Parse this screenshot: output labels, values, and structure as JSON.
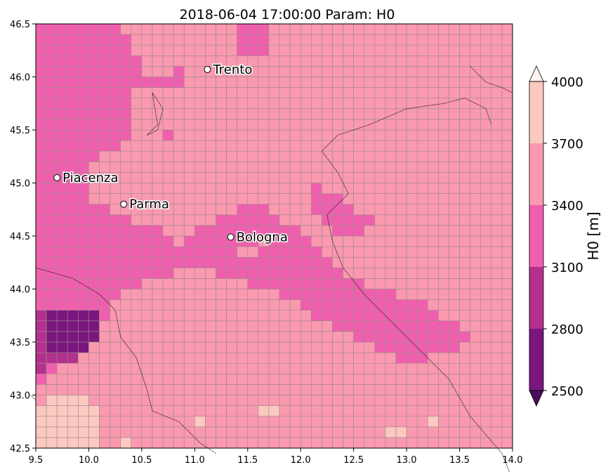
{
  "title": "2018-06-04 17:00:00 Param: H0",
  "x_ticks": [
    "9.5",
    "10.0",
    "10.5",
    "11.0",
    "11.5",
    "12.0",
    "12.5",
    "13.0",
    "13.5",
    "14.0"
  ],
  "y_ticks": [
    "46.5",
    "46.0",
    "45.5",
    "45.0",
    "44.5",
    "44.0",
    "43.5",
    "43.0",
    "42.5"
  ],
  "colorbar": {
    "label": "H0  [m]",
    "ticks": [
      "4000",
      "3700",
      "3400",
      "3100",
      "2800",
      "2500"
    ],
    "levels": [
      2500,
      2800,
      3100,
      3400,
      3700,
      4000
    ],
    "colors": [
      "#7a167d",
      "#b3308f",
      "#f05fae",
      "#fa99b0",
      "#fcc9c0"
    ],
    "under_color": "#4d0a5c",
    "over_color": "#fff2f0"
  },
  "map": {
    "lon_range": [
      9.5,
      14.0
    ],
    "lat_range": [
      42.5,
      46.5
    ],
    "grid_resolution_deg": 0.1,
    "cities": [
      {
        "name": "Trento",
        "lon": 11.12,
        "lat": 46.07
      },
      {
        "name": "Piacenza",
        "lon": 9.7,
        "lat": 45.05
      },
      {
        "name": "Parma",
        "lon": 10.33,
        "lat": 44.8
      },
      {
        "name": "Bologna",
        "lon": 11.34,
        "lat": 44.49
      }
    ]
  }
}
